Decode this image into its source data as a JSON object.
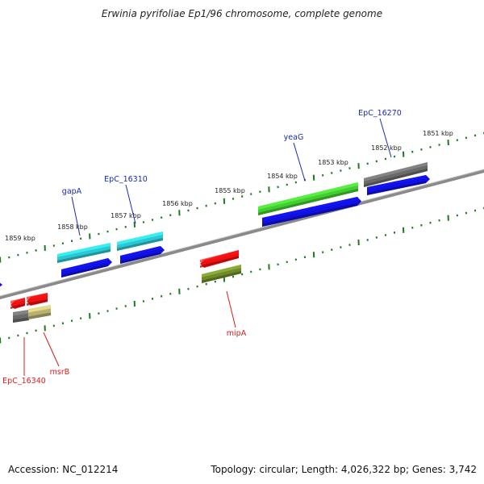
{
  "title": "Erwinia pyrifoliae Ep1/96 chromosome, complete genome",
  "footer": {
    "accession": "Accession: NC_012214",
    "summary": "Topology: circular; Length: 4,026,322 bp; Genes: 3,742"
  },
  "colors": {
    "backbone": "#8a8a8a",
    "scale_ticks": "#1e7a1e",
    "label_forward": "#1a2ab0",
    "label_reverse": "#d41f1f",
    "blue": "#1010e0",
    "cyan": "#2cc8d2",
    "green": "#44cc33",
    "gray": "#6a6a6a",
    "red": "#ee1111",
    "olive": "#6f8a2a",
    "khaki": "#b8b070"
  },
  "scale_labels": [
    "1851 kbp",
    "1852 kbp",
    "1853 kbp",
    "1854 kbp",
    "1855 kbp",
    "1856 kbp",
    "1857 kbp",
    "1858 kbp",
    "1859 kbp"
  ],
  "gene_labels": [
    {
      "text": "EpC_16270",
      "strand": "forward"
    },
    {
      "text": "yeaG",
      "strand": "forward"
    },
    {
      "text": "EpC_16310",
      "strand": "forward"
    },
    {
      "text": "gapA",
      "strand": "forward"
    },
    {
      "text": "mipA",
      "strand": "reverse"
    },
    {
      "text": "msrB",
      "strand": "reverse"
    },
    {
      "text": "EpC_16340",
      "strand": "reverse"
    }
  ],
  "features": [
    {
      "name": "blue-1",
      "color": "blue"
    },
    {
      "name": "gray-1",
      "color": "gray"
    },
    {
      "name": "blue-2",
      "color": "blue"
    },
    {
      "name": "green-yeaG",
      "color": "green"
    },
    {
      "name": "blue-3",
      "color": "blue"
    },
    {
      "name": "cyan-EpC_16310",
      "color": "cyan"
    },
    {
      "name": "blue-4",
      "color": "blue"
    },
    {
      "name": "cyan-gapA",
      "color": "cyan"
    },
    {
      "name": "blue-edge",
      "color": "blue"
    },
    {
      "name": "red-mipA",
      "color": "red"
    },
    {
      "name": "olive-mipA",
      "color": "olive"
    },
    {
      "name": "red-1",
      "color": "red"
    },
    {
      "name": "red-2",
      "color": "red"
    },
    {
      "name": "gray-2",
      "color": "gray"
    },
    {
      "name": "khaki-msrB",
      "color": "khaki"
    }
  ]
}
